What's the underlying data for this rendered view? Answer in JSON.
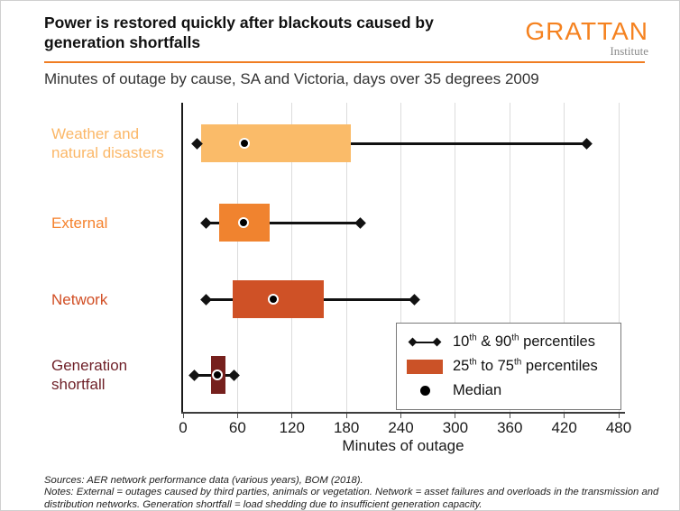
{
  "header": {
    "title_line1": "Power is restored quickly after blackouts caused by",
    "title_line2": "generation shortfalls",
    "logo": {
      "name": "GRATTAN",
      "subname": "Institute",
      "color": "#F58220"
    },
    "subtitle": "Minutes of outage by cause, SA and Victoria, days over 35 degrees 2009",
    "divider_color": "#F07D22"
  },
  "chart_data": {
    "type": "boxplot-horizontal",
    "title": "Power is restored quickly after blackouts caused by generation shortfalls",
    "subtitle": "Minutes of outage by cause, SA and Victoria, days over 35 degrees 2009",
    "xlabel": "Minutes of outage",
    "units": "minutes",
    "xlim": [
      0,
      480
    ],
    "xticks": [
      0,
      60,
      120,
      180,
      240,
      300,
      360,
      420,
      480
    ],
    "grid": "vertical-gridlines",
    "legend_position": "inside-bottom-right",
    "statistic_keys": [
      "p10",
      "p25",
      "median",
      "p75",
      "p90"
    ],
    "series": [
      {
        "category": "Weather and\nnatural disasters",
        "p10": 15,
        "p25": 20,
        "median": 68,
        "p75": 185,
        "p90": 445,
        "box_color": "#FABB69",
        "label_color": "#FBB767"
      },
      {
        "category": "External",
        "p10": 25,
        "p25": 40,
        "median": 67,
        "p75": 95,
        "p90": 195,
        "box_color": "#F0832F",
        "label_color": "#F5822D"
      },
      {
        "category": "Network",
        "p10": 25,
        "p25": 55,
        "median": 100,
        "p75": 155,
        "p90": 255,
        "box_color": "#CF5126",
        "label_color": "#D14E24"
      },
      {
        "category": "Generation\nshortfall",
        "p10": 12,
        "p25": 31,
        "median": 38,
        "p75": 47,
        "p90": 56,
        "box_color": "#76201D",
        "label_color": "#6E1F27"
      }
    ]
  },
  "legend": {
    "swatch_color": "#CB5227",
    "items": [
      {
        "icon": "whisker-range-icon",
        "parts": [
          "10",
          "th",
          " & 90",
          "th",
          " percentiles"
        ]
      },
      {
        "icon": "iqr-box-icon",
        "parts": [
          "25",
          "th",
          " to 75",
          "th",
          " percentiles"
        ]
      },
      {
        "icon": "median-dot-icon",
        "parts": [
          "Median",
          "",
          "",
          "",
          ""
        ]
      }
    ]
  },
  "footer": {
    "line1": "Sources: AER network performance data (various years), BOM (2018).",
    "line2": "Notes: External = outages caused by third parties, animals or vegetation. Network = asset failures and overloads in the transmission and",
    "line3": "distribution networks. Generation shortfall = load shedding due to insufficient generation capacity."
  }
}
